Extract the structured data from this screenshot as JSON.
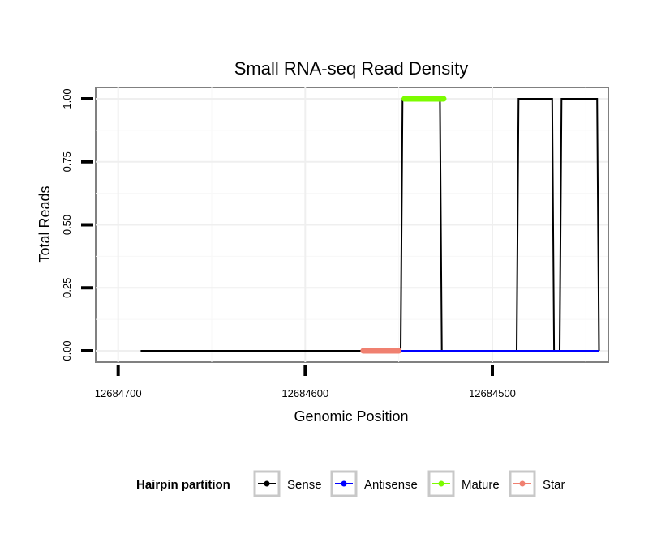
{
  "chart_data": {
    "type": "line",
    "title": "Small RNA-seq Read Density",
    "xlabel": "Genomic Position",
    "ylabel": "Total Reads",
    "xlim": [
      12684712,
      12684438
    ],
    "x_reversed": true,
    "ylim": [
      -0.045,
      1.045
    ],
    "x_ticks": [
      12684700,
      12684600,
      12684500
    ],
    "x_tick_labels": [
      "12684700",
      "12684600",
      "12684500"
    ],
    "y_ticks": [
      0,
      0.25,
      0.5,
      0.75,
      1
    ],
    "y_tick_labels": [
      "0.00",
      "0.25",
      "0.50",
      "0.75",
      "1.00"
    ],
    "grid": true,
    "legend": {
      "title": "Hairpin partition",
      "position": "bottom",
      "entries": [
        {
          "name": "Sense",
          "color": "#000000"
        },
        {
          "name": "Antisense",
          "color": "#0000ff"
        },
        {
          "name": "Mature",
          "color": "#7cfc00"
        },
        {
          "name": "Star",
          "color": "#f08070"
        }
      ]
    },
    "series": [
      {
        "name": "Sense",
        "color": "#000000",
        "x": [
          12684688,
          12684549,
          12684548,
          12684528,
          12684527,
          12684487,
          12684486,
          12684468,
          12684467,
          12684464,
          12684463,
          12684444,
          12684443
        ],
        "y": [
          0,
          0,
          1,
          1,
          0,
          0,
          1,
          1,
          0,
          0,
          1,
          1,
          0
        ]
      },
      {
        "name": "Antisense",
        "color": "#0000ff",
        "x": [
          12684549,
          12684443
        ],
        "y": [
          0,
          0
        ]
      },
      {
        "name": "Mature",
        "color": "#7cfc00",
        "x": [
          12684547,
          12684526
        ],
        "y": [
          1,
          1
        ]
      },
      {
        "name": "Star",
        "color": "#f08070",
        "x": [
          12684569,
          12684550
        ],
        "y": [
          0,
          0
        ]
      }
    ]
  }
}
